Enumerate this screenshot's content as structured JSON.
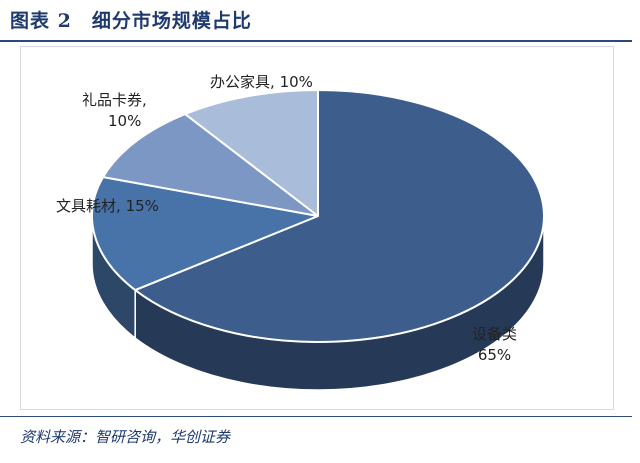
{
  "figure": {
    "title": "图表 2　细分市场规模占比",
    "source": "资料来源：智研咨询，华创证券"
  },
  "chart_data": {
    "type": "pie",
    "style": "3d",
    "slices": [
      {
        "label": "设备类",
        "value": 65,
        "value_label": "65%",
        "color": "#3d5e8c"
      },
      {
        "label": "文具耗材",
        "value": 15,
        "value_label": "15%",
        "color": "#4873a8"
      },
      {
        "label": "礼品卡券",
        "value": 10,
        "value_label": "10%",
        "color": "#7d97c4"
      },
      {
        "label": "办公家具",
        "value": 10,
        "value_label": "10%",
        "color": "#a9bcd9"
      }
    ]
  }
}
